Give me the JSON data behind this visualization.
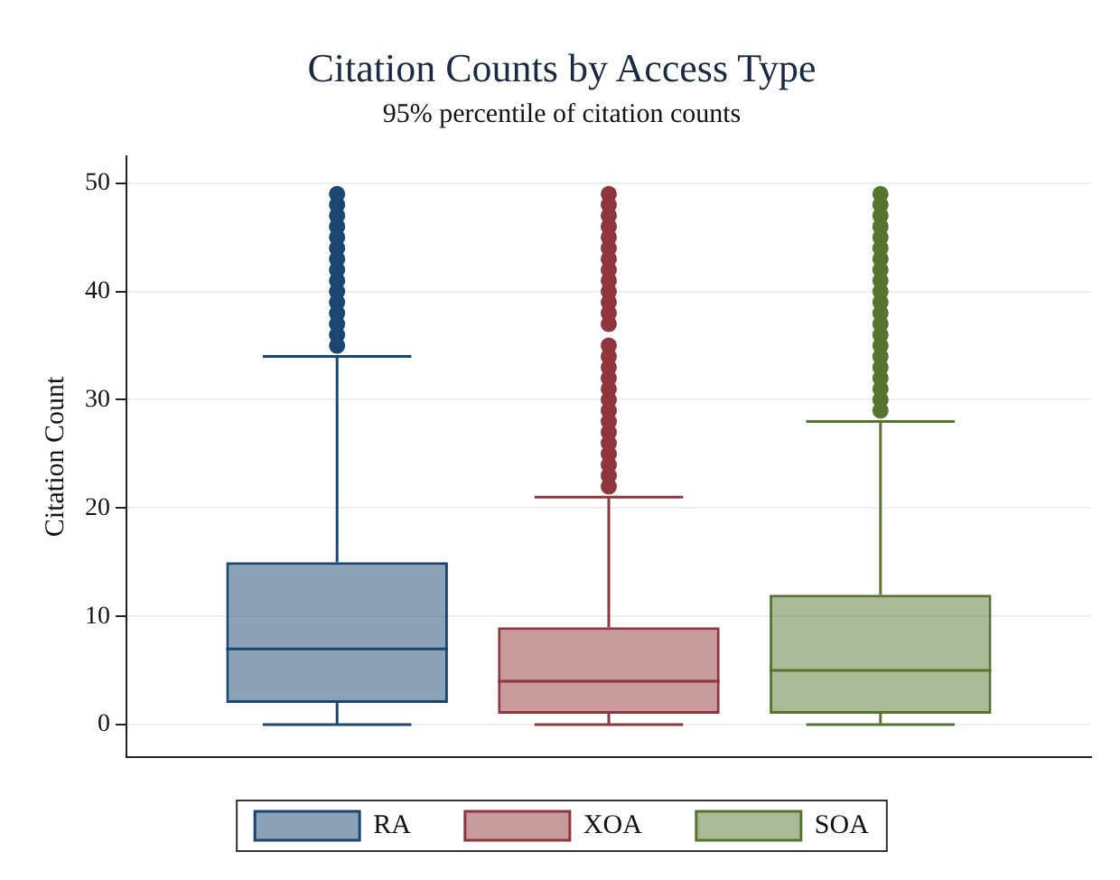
{
  "chart_data": {
    "type": "box",
    "title": "Citation Counts by Access Type",
    "subtitle": "95% percentile of citation counts",
    "ylabel": "Citation Count",
    "categories": [
      null
    ],
    "ylim": [
      -3,
      52.5
    ],
    "yticks": [
      0,
      10,
      20,
      30,
      40,
      50
    ],
    "grid": "y",
    "legend": "bottom",
    "tick_labels": "y",
    "series": [
      {
        "name": "RA",
        "color": "#1a476f",
        "boxes": [
          {
            "low": 0,
            "q1": 2,
            "median": 7,
            "q3": 15,
            "high": 34,
            "outliers": [
              35,
              36,
              37,
              38,
              39,
              40,
              41,
              42,
              43,
              44,
              45,
              46,
              47,
              48,
              49
            ]
          }
        ]
      },
      {
        "name": "XOA",
        "color": "#90353b",
        "boxes": [
          {
            "low": 0,
            "q1": 1,
            "median": 4,
            "q3": 9,
            "high": 21,
            "outliers": [
              22,
              23,
              24,
              25,
              26,
              27,
              28,
              29,
              30,
              31,
              32,
              33,
              34,
              35,
              37,
              38,
              39,
              40,
              41,
              42,
              43,
              44,
              45,
              46,
              47,
              48,
              49
            ]
          }
        ]
      },
      {
        "name": "SOA",
        "color": "#55752f",
        "boxes": [
          {
            "low": 0,
            "q1": 1,
            "median": 5,
            "q3": 12,
            "high": 28,
            "outliers": [
              29,
              30,
              31,
              32,
              33,
              34,
              35,
              36,
              37,
              38,
              39,
              40,
              41,
              42,
              43,
              44,
              45,
              46,
              47,
              48,
              49
            ]
          }
        ]
      }
    ]
  }
}
